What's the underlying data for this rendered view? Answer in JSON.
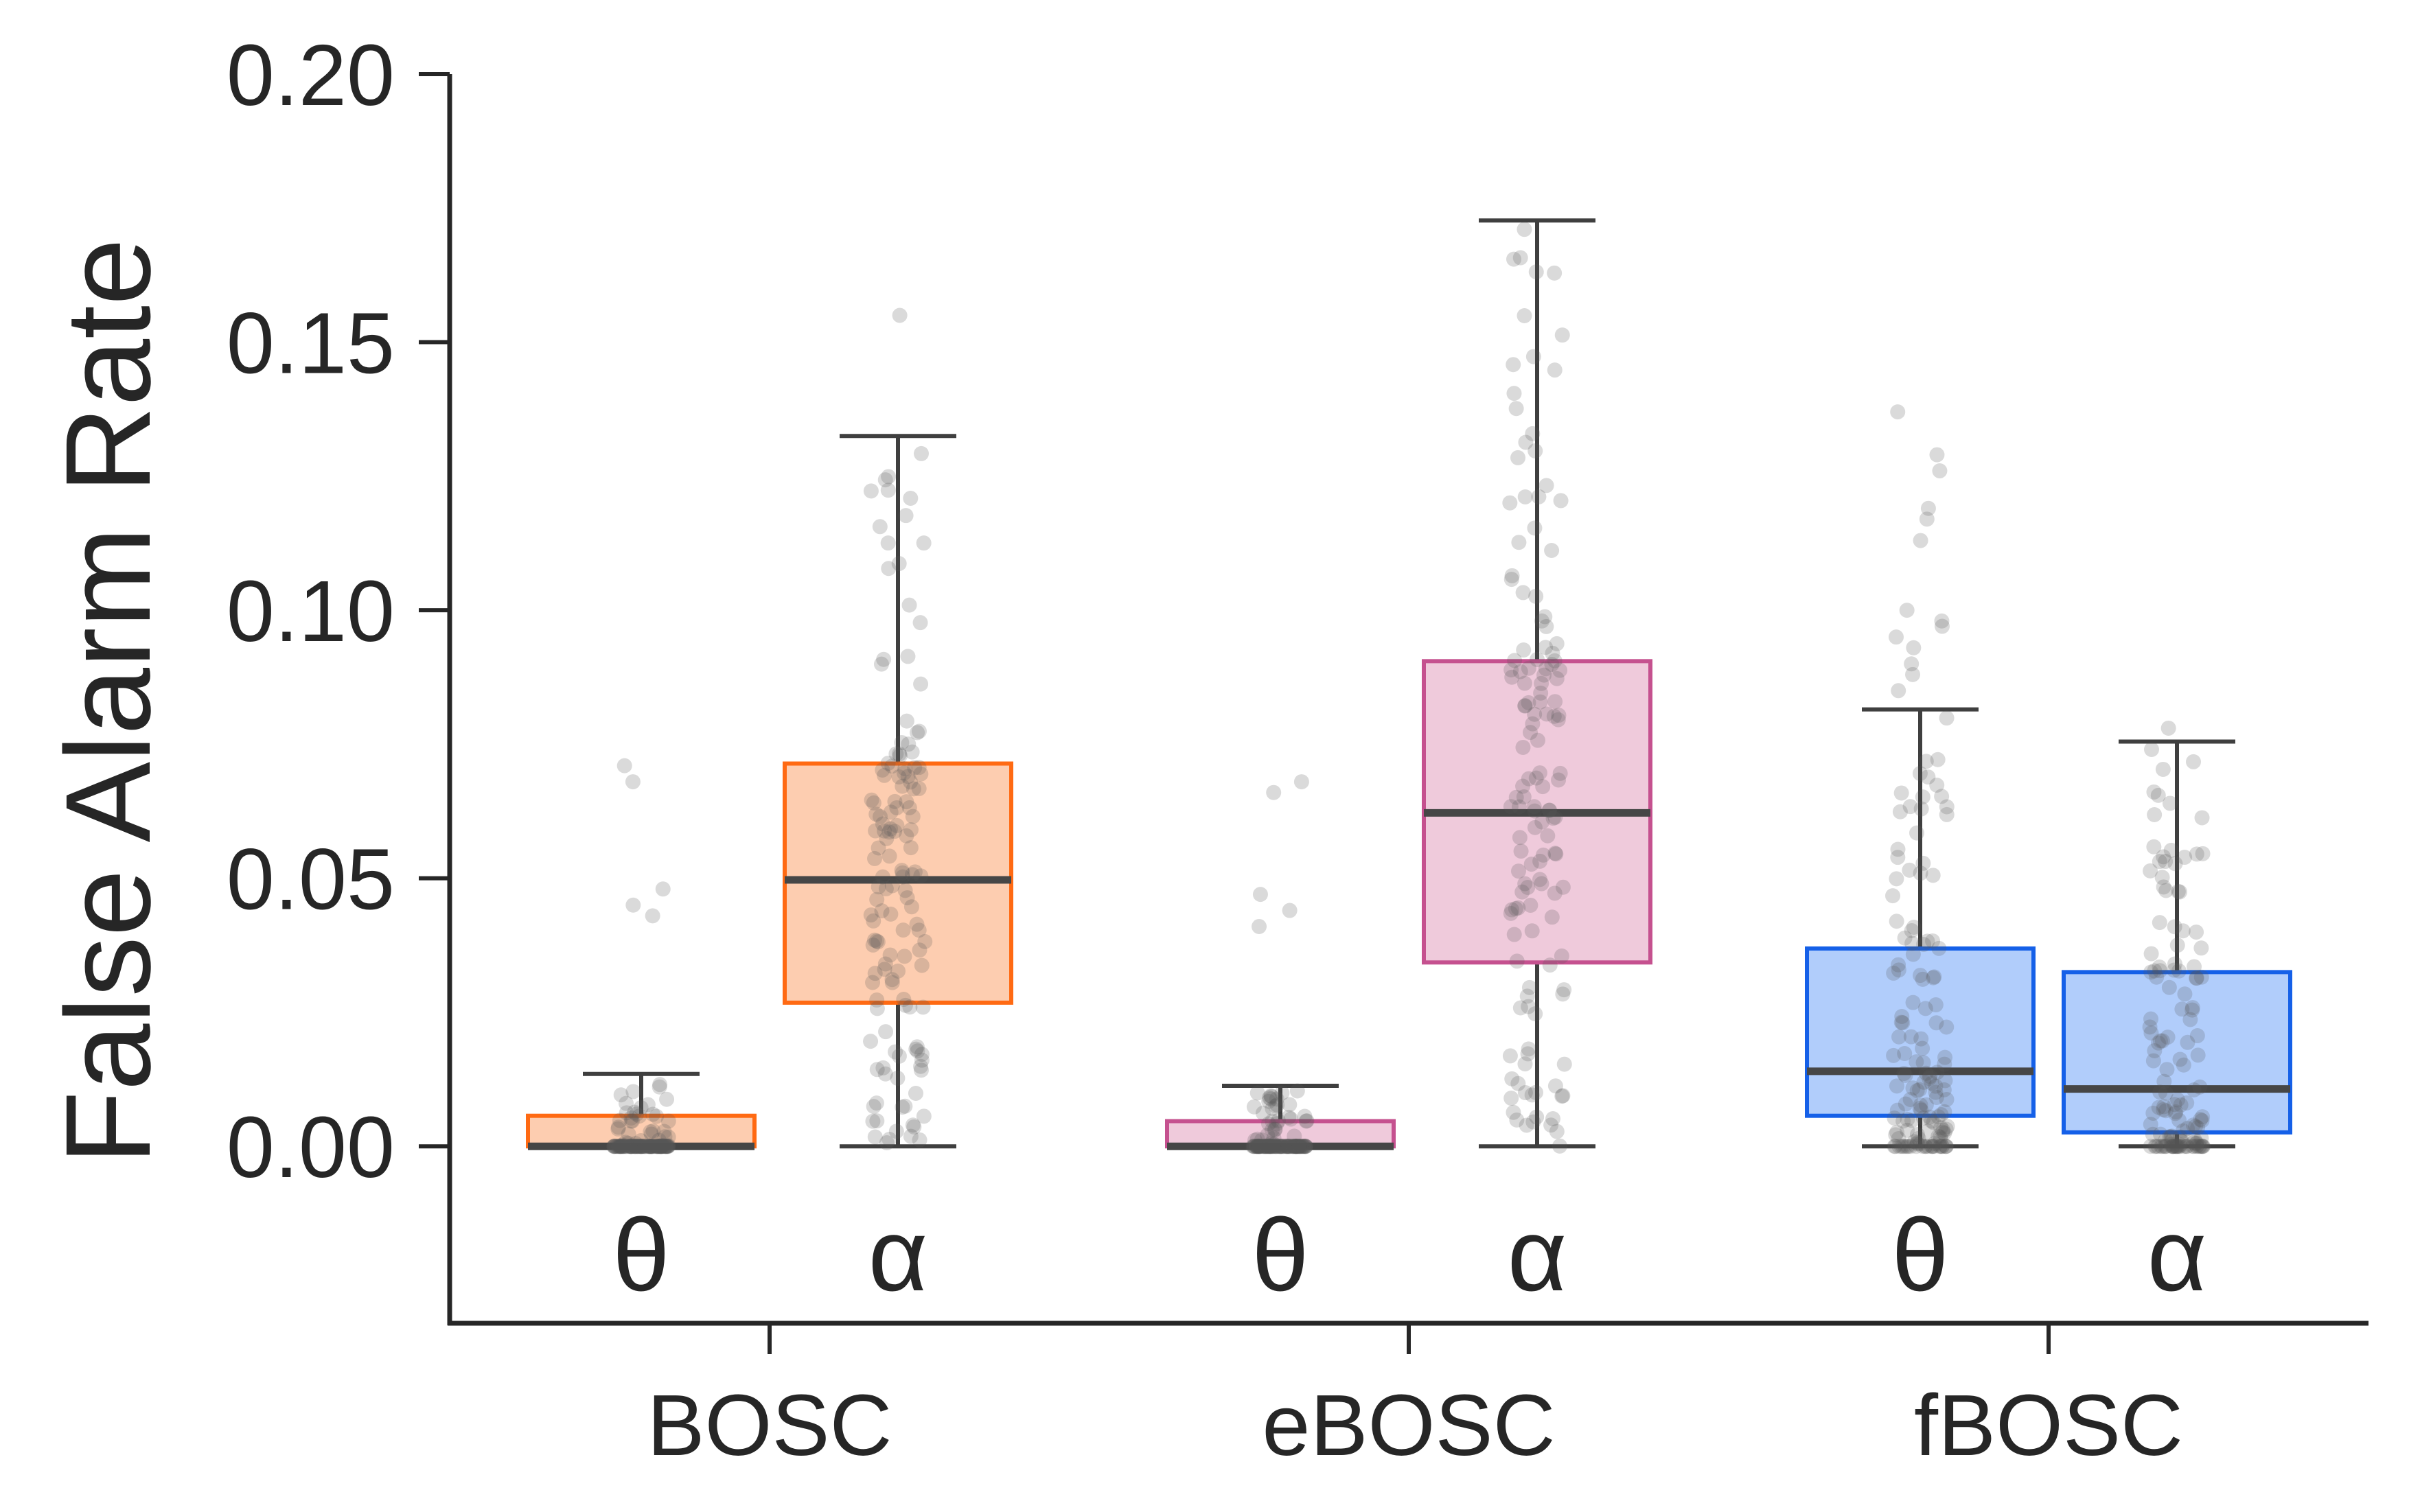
{
  "chart_data": {
    "type": "boxplot",
    "title": "",
    "xlabel": "",
    "ylabel": "False Alarm Rate",
    "ylim": [
      -0.033,
      0.2
    ],
    "yticks": [
      0.0,
      0.05,
      0.1,
      0.15,
      0.2
    ],
    "ytick_labels": [
      "0.00",
      "0.05",
      "0.10",
      "0.15",
      "0.20"
    ],
    "groups": [
      "BOSC",
      "eBOSC",
      "fBOSC"
    ],
    "bands": [
      "θ",
      "α"
    ],
    "boxes": [
      {
        "group": "BOSC",
        "band": "θ",
        "color": "#ff6a13",
        "fill": "#fdcdb0",
        "whisker_low": 0.0,
        "q1": 0.0,
        "median": 0.0,
        "q3": 0.0057,
        "whisker_high": 0.0135
      },
      {
        "group": "BOSC",
        "band": "α",
        "color": "#ff6a13",
        "fill": "#fdcdb0",
        "whisker_low": 0.0,
        "q1": 0.0268,
        "median": 0.0497,
        "q3": 0.0714,
        "whisker_high": 0.1325
      },
      {
        "group": "eBOSC",
        "band": "θ",
        "color": "#c5518f",
        "fill": "#efcadb",
        "whisker_low": 0.0,
        "q1": 0.0,
        "median": 0.0,
        "q3": 0.0047,
        "whisker_high": 0.0113
      },
      {
        "group": "eBOSC",
        "band": "α",
        "color": "#c5518f",
        "fill": "#efcadb",
        "whisker_low": 0.0,
        "q1": 0.0343,
        "median": 0.0622,
        "q3": 0.0905,
        "whisker_high": 0.1727
      },
      {
        "group": "fBOSC",
        "band": "θ",
        "color": "#1560e8",
        "fill": "#b1cdfb",
        "whisker_low": 0.0,
        "q1": 0.0057,
        "median": 0.014,
        "q3": 0.0369,
        "whisker_high": 0.0815
      },
      {
        "group": "fBOSC",
        "band": "α",
        "color": "#1560e8",
        "fill": "#b1cdfb",
        "whisker_low": 0.0,
        "q1": 0.0026,
        "median": 0.0107,
        "q3": 0.0325,
        "whisker_high": 0.0755
      }
    ],
    "outliers": [
      {
        "group": "BOSC",
        "band": "θ",
        "values": [
          0.071,
          0.068,
          0.048,
          0.045,
          0.043
        ]
      },
      {
        "group": "BOSC",
        "band": "α",
        "values": [
          0.155
        ]
      },
      {
        "group": "eBOSC",
        "band": "θ",
        "values": [
          0.068,
          0.066,
          0.047,
          0.044,
          0.041
        ]
      },
      {
        "group": "fBOSC",
        "band": "θ",
        "values": [
          0.137,
          0.129,
          0.126,
          0.119,
          0.117,
          0.113,
          0.1,
          0.098,
          0.097,
          0.095,
          0.093,
          0.09,
          0.088,
          0.085
        ]
      },
      {
        "group": "fBOSC",
        "band": "α",
        "values": [
          0.078
        ]
      }
    ],
    "points_per_box": 140,
    "legend": "none"
  }
}
